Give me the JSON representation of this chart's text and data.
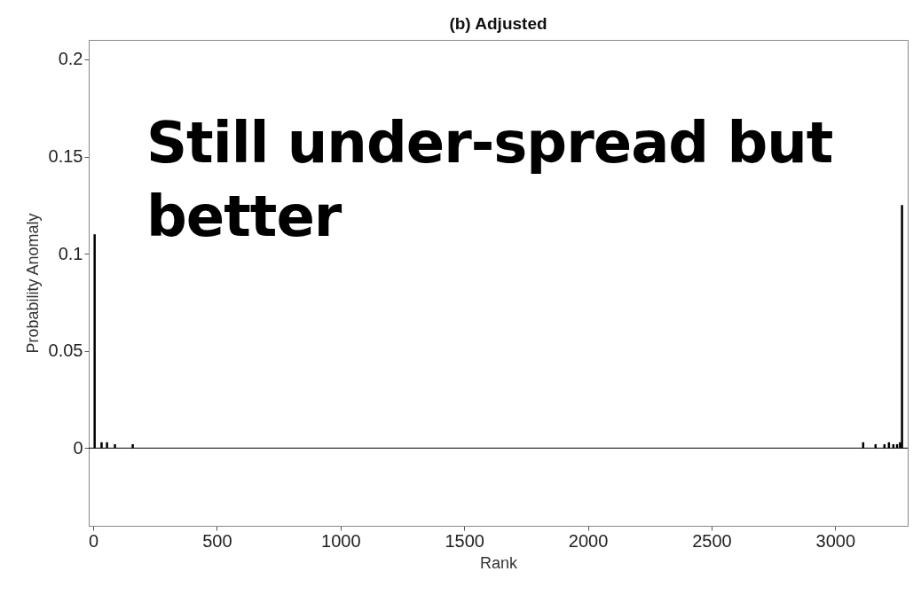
{
  "chart_data": {
    "type": "bar",
    "title": "(b) Adjusted",
    "xlabel": "Rank",
    "ylabel": "Probability Anomaly",
    "x": [
      6,
      34,
      56,
      88,
      160,
      3113,
      3163,
      3199,
      3217,
      3235,
      3250,
      3262,
      3270
    ],
    "values": [
      0.11,
      0.003,
      0.003,
      0.002,
      0.002,
      0.003,
      0.002,
      0.002,
      0.003,
      0.002,
      0.002,
      0.003,
      0.125
    ],
    "color": "#000000",
    "xlim": [
      0,
      3275
    ],
    "xticks": [
      0,
      500,
      1000,
      1500,
      2000,
      2500,
      3000
    ],
    "ylim": [
      -0.04,
      0.21
    ],
    "yticks": [
      0,
      0.05,
      0.1,
      0.15,
      0.2
    ],
    "ref_lines": [
      {
        "axis": "y",
        "value": 0,
        "color": "#000000"
      }
    ],
    "annotations": [
      "Still under-spread but better"
    ],
    "grid": false
  }
}
